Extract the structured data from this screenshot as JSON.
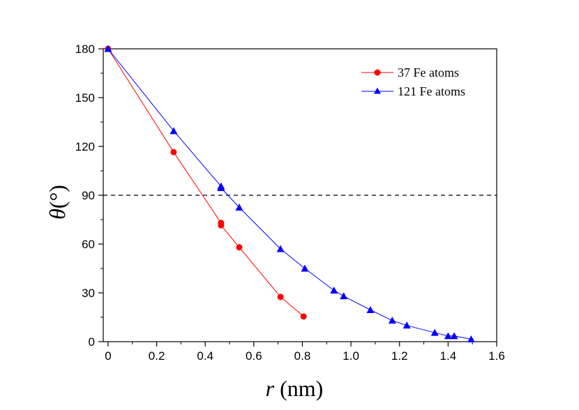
{
  "chart_data": {
    "type": "line",
    "title": "",
    "xlabel_var": "r",
    "xlabel_unit": " (nm)",
    "ylabel_var": "θ",
    "ylabel_unit": "(°)",
    "xlim": [
      -0.02,
      1.6
    ],
    "ylim": [
      0,
      180
    ],
    "x_ticks": [
      0,
      0.2,
      0.4,
      0.6,
      0.8,
      1.0,
      1.2,
      1.4,
      1.6
    ],
    "x_tick_labels": [
      "0",
      "0.2",
      "0.4",
      "0.6",
      "0.8",
      "1.0",
      "1.2",
      "1.4",
      "1.6"
    ],
    "y_ticks": [
      0,
      30,
      60,
      90,
      120,
      150,
      180
    ],
    "y_tick_labels": [
      "0",
      "30",
      "60",
      "90",
      "120",
      "150",
      "180"
    ],
    "reference_line": {
      "y": 90,
      "style": "dashed"
    },
    "legend_position": "top-right",
    "series": [
      {
        "name": "37 Fe atoms",
        "color": "#ff0000",
        "marker": "circle",
        "points": [
          [
            0,
            180
          ],
          [
            0.27,
            116.5
          ],
          [
            0.465,
            73
          ],
          [
            0.465,
            71.5
          ],
          [
            0.54,
            58
          ],
          [
            0.71,
            27.5
          ],
          [
            0.805,
            15.5
          ]
        ]
      },
      {
        "name": "121 Fe atoms",
        "color": "#0000ff",
        "marker": "triangle",
        "points": [
          [
            0,
            180
          ],
          [
            0.27,
            129.5
          ],
          [
            0.465,
            95.5
          ],
          [
            0.465,
            94.5
          ],
          [
            0.54,
            82.5
          ],
          [
            0.71,
            57
          ],
          [
            0.81,
            45
          ],
          [
            0.93,
            31.5
          ],
          [
            0.97,
            28
          ],
          [
            1.08,
            19.5
          ],
          [
            1.17,
            13
          ],
          [
            1.23,
            10
          ],
          [
            1.345,
            5.5
          ],
          [
            1.4,
            3.5
          ],
          [
            1.425,
            3.5
          ],
          [
            1.495,
            1.5
          ]
        ]
      }
    ]
  }
}
